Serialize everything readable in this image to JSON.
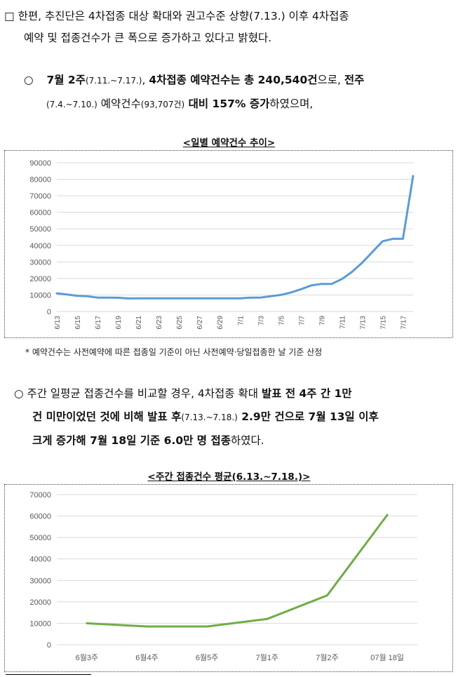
{
  "para1": {
    "bullet": "□",
    "line1": "한편, 추진단은 4차접종 대상 확대와 권고수준 상향(7.13.) 이후 4차접종",
    "line2": "예약 및 접종건수가 큰 폭으로 증가하고 있다고 밝혔다."
  },
  "para2": {
    "bullet": "○",
    "bold1": "7월 2주",
    "small1": "(7.11.~7.17.)",
    "sep": ", ",
    "bold2": "4차접종 예약건수는 총 240,540건",
    "mid": "으로, ",
    "bold3": "전주",
    "small2": "(7.4.~7.10.)",
    "text2": " 예약건수",
    "small3": "(93,707건)",
    "bold4": " 대비 157% 증가",
    "end": "하였으며,"
  },
  "chart1_title": "<일별 예약건수 추이>",
  "footnote": "* 예약건수는 사전예약에 따른 접종일 기준이 아닌 사전예약·당일접종한 날 기준 산정",
  "para3": {
    "bullet": "○",
    "t1": " 주간 일평균 접종건수를 비교할 경우, 4차접종 확대 ",
    "b1": "발표 전 4주 간 1만",
    "b2": "건 미만이었던 것에 비해 발표 후",
    "s1": "(7.13.~7.18.)",
    "b3": " 2.9만 건으로 7월 13일 이후",
    "b4": "크게 증가해 7월 18일 기준 6.0만 명 접종",
    "end": "하였다."
  },
  "chart2_title": "<주간 접종건수 평균(6.13.~7.18.)>",
  "chart_data": [
    {
      "type": "line",
      "title": "<일별 예약건수 추이>",
      "x": [
        "6/13",
        "6/14",
        "6/15",
        "6/16",
        "6/17",
        "6/18",
        "6/19",
        "6/20",
        "6/21",
        "6/22",
        "6/23",
        "6/24",
        "6/25",
        "6/26",
        "6/27",
        "6/28",
        "6/29",
        "6/30",
        "7/1",
        "7/2",
        "7/3",
        "7/4",
        "7/5",
        "7/6",
        "7/7",
        "7/8",
        "7/9",
        "7/10",
        "7/11",
        "7/12",
        "7/13",
        "7/14",
        "7/15",
        "7/16",
        "7/17",
        "7/18"
      ],
      "x_tick_labels": [
        "6/13",
        "6/15",
        "6/17",
        "6/19",
        "6/21",
        "6/23",
        "6/25",
        "6/27",
        "6/29",
        "7/1",
        "7/3",
        "7/5",
        "7/7",
        "7/9",
        "7/11",
        "7/13",
        "7/15",
        "7/17"
      ],
      "series": [
        {
          "values": [
            11000,
            10300,
            9500,
            9200,
            8400,
            8400,
            8300,
            7900,
            8000,
            8000,
            8000,
            8000,
            8000,
            8000,
            8000,
            8000,
            8000,
            8000,
            8000,
            8400,
            8400,
            9200,
            10000,
            11500,
            13500,
            15800,
            16700,
            16700,
            19600,
            24000,
            29500,
            36000,
            42500,
            44000,
            44000,
            82000
          ]
        }
      ],
      "ylim": [
        0,
        90000
      ],
      "yticks": [
        0,
        10000,
        20000,
        30000,
        40000,
        50000,
        60000,
        70000,
        80000,
        90000
      ],
      "grid": true,
      "color": "#5b9bd5"
    },
    {
      "type": "line",
      "title": "<주간 접종건수 평균(6.13.~7.18.)>",
      "categories": [
        "6월3주",
        "6월4주",
        "6월5주",
        "7월1주",
        "7월2주",
        "07월 18일"
      ],
      "series": [
        {
          "values": [
            10000,
            8500,
            8500,
            12000,
            23000,
            60500
          ]
        }
      ],
      "ylim": [
        0,
        70000
      ],
      "yticks": [
        0,
        10000,
        20000,
        30000,
        40000,
        50000,
        60000,
        70000
      ],
      "grid": true,
      "color": "#70ad47"
    }
  ]
}
